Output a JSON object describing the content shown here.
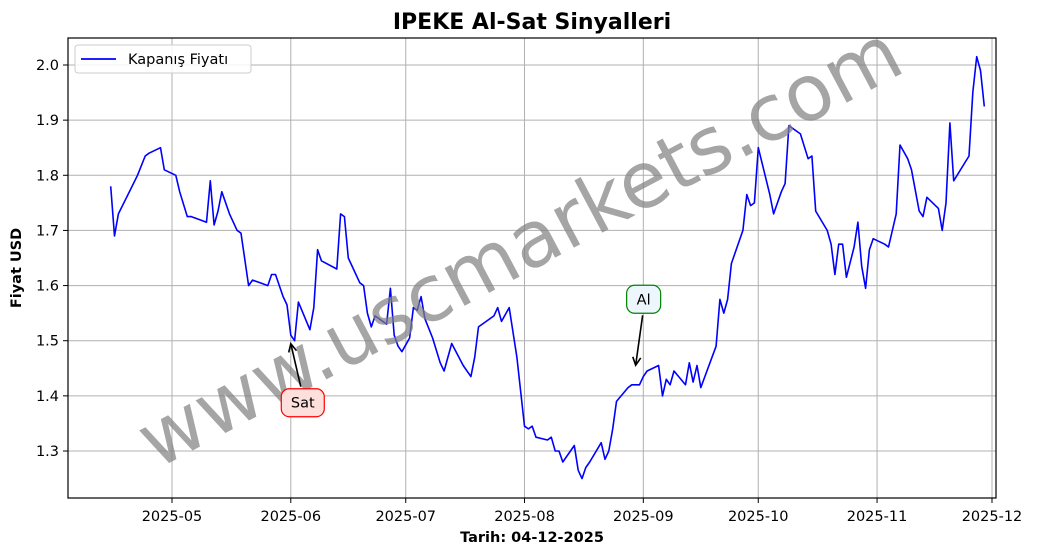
{
  "chart_data": {
    "type": "line",
    "title": "IPEKE Al-Sat Sinyalleri",
    "xlabel": "Tarih: 04-12-2025",
    "ylabel": "Fiyat USD",
    "ylim": [
      1.215,
      2.05
    ],
    "yticks": [
      1.3,
      1.4,
      1.5,
      1.6,
      1.7,
      1.8,
      1.9,
      2.0
    ],
    "ytick_labels": [
      "1.3",
      "1.4",
      "1.5",
      "1.6",
      "1.7",
      "1.8",
      "1.9",
      "2.0"
    ],
    "xticks": [
      "2025-05",
      "2025-06",
      "2025-07",
      "2025-08",
      "2025-09",
      "2025-10",
      "2025-11",
      "2025-12"
    ],
    "grid": true,
    "legend": {
      "position": "upper left",
      "entries": [
        {
          "label": "Kapanış Fiyatı",
          "color": "#0000ff"
        }
      ]
    },
    "series": [
      {
        "name": "Kapanış Fiyatı",
        "color": "#0000ff",
        "points": [
          [
            "2025-04-15",
            1.78
          ],
          [
            "2025-04-16",
            1.69
          ],
          [
            "2025-04-17",
            1.73
          ],
          [
            "2025-04-22",
            1.8
          ],
          [
            "2025-04-24",
            1.835
          ],
          [
            "2025-04-25",
            1.84
          ],
          [
            "2025-04-28",
            1.85
          ],
          [
            "2025-04-29",
            1.81
          ],
          [
            "2025-05-02",
            1.8
          ],
          [
            "2025-05-03",
            1.77
          ],
          [
            "2025-05-05",
            1.725
          ],
          [
            "2025-05-06",
            1.725
          ],
          [
            "2025-05-08",
            1.72
          ],
          [
            "2025-05-10",
            1.715
          ],
          [
            "2025-05-11",
            1.79
          ],
          [
            "2025-05-12",
            1.71
          ],
          [
            "2025-05-13",
            1.735
          ],
          [
            "2025-05-14",
            1.77
          ],
          [
            "2025-05-16",
            1.73
          ],
          [
            "2025-05-18",
            1.7
          ],
          [
            "2025-05-19",
            1.695
          ],
          [
            "2025-05-21",
            1.6
          ],
          [
            "2025-05-22",
            1.61
          ],
          [
            "2025-05-24",
            1.605
          ],
          [
            "2025-05-26",
            1.6
          ],
          [
            "2025-05-27",
            1.62
          ],
          [
            "2025-05-28",
            1.62
          ],
          [
            "2025-05-30",
            1.58
          ],
          [
            "2025-05-31",
            1.565
          ],
          [
            "2025-06-01",
            1.51
          ],
          [
            "2025-06-02",
            1.5
          ],
          [
            "2025-06-03",
            1.57
          ],
          [
            "2025-06-06",
            1.52
          ],
          [
            "2025-06-07",
            1.56
          ],
          [
            "2025-06-08",
            1.665
          ],
          [
            "2025-06-09",
            1.645
          ],
          [
            "2025-06-13",
            1.63
          ],
          [
            "2025-06-14",
            1.73
          ],
          [
            "2025-06-15",
            1.725
          ],
          [
            "2025-06-16",
            1.65
          ],
          [
            "2025-06-19",
            1.605
          ],
          [
            "2025-06-20",
            1.6
          ],
          [
            "2025-06-21",
            1.55
          ],
          [
            "2025-06-22",
            1.525
          ],
          [
            "2025-06-23",
            1.545
          ],
          [
            "2025-06-26",
            1.53
          ],
          [
            "2025-06-27",
            1.595
          ],
          [
            "2025-06-28",
            1.51
          ],
          [
            "2025-06-29",
            1.49
          ],
          [
            "2025-06-30",
            1.48
          ],
          [
            "2025-07-02",
            1.505
          ],
          [
            "2025-07-03",
            1.56
          ],
          [
            "2025-07-04",
            1.555
          ],
          [
            "2025-07-05",
            1.58
          ],
          [
            "2025-07-06",
            1.54
          ],
          [
            "2025-07-08",
            1.505
          ],
          [
            "2025-07-10",
            1.46
          ],
          [
            "2025-07-11",
            1.445
          ],
          [
            "2025-07-13",
            1.495
          ],
          [
            "2025-07-16",
            1.455
          ],
          [
            "2025-07-18",
            1.435
          ],
          [
            "2025-07-19",
            1.47
          ],
          [
            "2025-07-20",
            1.525
          ],
          [
            "2025-07-24",
            1.545
          ],
          [
            "2025-07-25",
            1.56
          ],
          [
            "2025-07-26",
            1.535
          ],
          [
            "2025-07-28",
            1.56
          ],
          [
            "2025-07-30",
            1.47
          ],
          [
            "2025-08-01",
            1.345
          ],
          [
            "2025-08-02",
            1.34
          ],
          [
            "2025-08-03",
            1.345
          ],
          [
            "2025-08-04",
            1.325
          ],
          [
            "2025-08-07",
            1.32
          ],
          [
            "2025-08-08",
            1.325
          ],
          [
            "2025-08-09",
            1.3
          ],
          [
            "2025-08-10",
            1.3
          ],
          [
            "2025-08-11",
            1.28
          ],
          [
            "2025-08-14",
            1.31
          ],
          [
            "2025-08-15",
            1.265
          ],
          [
            "2025-08-16",
            1.25
          ],
          [
            "2025-08-17",
            1.27
          ],
          [
            "2025-08-18",
            1.28
          ],
          [
            "2025-08-21",
            1.315
          ],
          [
            "2025-08-22",
            1.285
          ],
          [
            "2025-08-23",
            1.3
          ],
          [
            "2025-08-24",
            1.34
          ],
          [
            "2025-08-25",
            1.39
          ],
          [
            "2025-08-28",
            1.415
          ],
          [
            "2025-08-29",
            1.42
          ],
          [
            "2025-08-31",
            1.42
          ],
          [
            "2025-09-01",
            1.435
          ],
          [
            "2025-09-02",
            1.445
          ],
          [
            "2025-09-05",
            1.455
          ],
          [
            "2025-09-06",
            1.4
          ],
          [
            "2025-09-07",
            1.43
          ],
          [
            "2025-09-08",
            1.42
          ],
          [
            "2025-09-09",
            1.445
          ],
          [
            "2025-09-12",
            1.42
          ],
          [
            "2025-09-13",
            1.46
          ],
          [
            "2025-09-14",
            1.425
          ],
          [
            "2025-09-15",
            1.455
          ],
          [
            "2025-09-16",
            1.415
          ],
          [
            "2025-09-20",
            1.49
          ],
          [
            "2025-09-21",
            1.575
          ],
          [
            "2025-09-22",
            1.55
          ],
          [
            "2025-09-23",
            1.575
          ],
          [
            "2025-09-24",
            1.64
          ],
          [
            "2025-09-27",
            1.7
          ],
          [
            "2025-09-28",
            1.765
          ],
          [
            "2025-09-29",
            1.745
          ],
          [
            "2025-09-30",
            1.75
          ],
          [
            "2025-10-01",
            1.85
          ],
          [
            "2025-10-04",
            1.765
          ],
          [
            "2025-10-05",
            1.73
          ],
          [
            "2025-10-07",
            1.77
          ],
          [
            "2025-10-08",
            1.785
          ],
          [
            "2025-10-09",
            1.89
          ],
          [
            "2025-10-12",
            1.875
          ],
          [
            "2025-10-14",
            1.83
          ],
          [
            "2025-10-15",
            1.835
          ],
          [
            "2025-10-16",
            1.735
          ],
          [
            "2025-10-19",
            1.7
          ],
          [
            "2025-10-20",
            1.675
          ],
          [
            "2025-10-21",
            1.62
          ],
          [
            "2025-10-22",
            1.675
          ],
          [
            "2025-10-23",
            1.675
          ],
          [
            "2025-10-24",
            1.615
          ],
          [
            "2025-10-26",
            1.67
          ],
          [
            "2025-10-27",
            1.715
          ],
          [
            "2025-10-28",
            1.635
          ],
          [
            "2025-10-29",
            1.595
          ],
          [
            "2025-10-30",
            1.665
          ],
          [
            "2025-10-31",
            1.685
          ],
          [
            "2025-11-03",
            1.675
          ],
          [
            "2025-11-04",
            1.67
          ],
          [
            "2025-11-06",
            1.73
          ],
          [
            "2025-11-07",
            1.855
          ],
          [
            "2025-11-09",
            1.83
          ],
          [
            "2025-11-10",
            1.81
          ],
          [
            "2025-11-12",
            1.735
          ],
          [
            "2025-11-13",
            1.725
          ],
          [
            "2025-11-14",
            1.76
          ],
          [
            "2025-11-17",
            1.74
          ],
          [
            "2025-11-18",
            1.7
          ],
          [
            "2025-11-19",
            1.75
          ],
          [
            "2025-11-20",
            1.895
          ],
          [
            "2025-11-21",
            1.79
          ],
          [
            "2025-11-25",
            1.835
          ],
          [
            "2025-11-26",
            1.95
          ],
          [
            "2025-11-27",
            2.015
          ],
          [
            "2025-11-28",
            1.99
          ],
          [
            "2025-11-29",
            1.925
          ]
        ]
      }
    ],
    "annotations": [
      {
        "label": "Sat",
        "type": "sell",
        "target_date": "2025-06-01",
        "target_value": 1.5,
        "box_color": "#ff0000",
        "box_fill": "#fde0dc"
      },
      {
        "label": "Al",
        "type": "buy",
        "target_date": "2025-08-30",
        "target_value": 1.45,
        "box_color": "#008000",
        "box_fill": "#eef6fd"
      }
    ],
    "watermark": "www.uscmarkets.com"
  }
}
